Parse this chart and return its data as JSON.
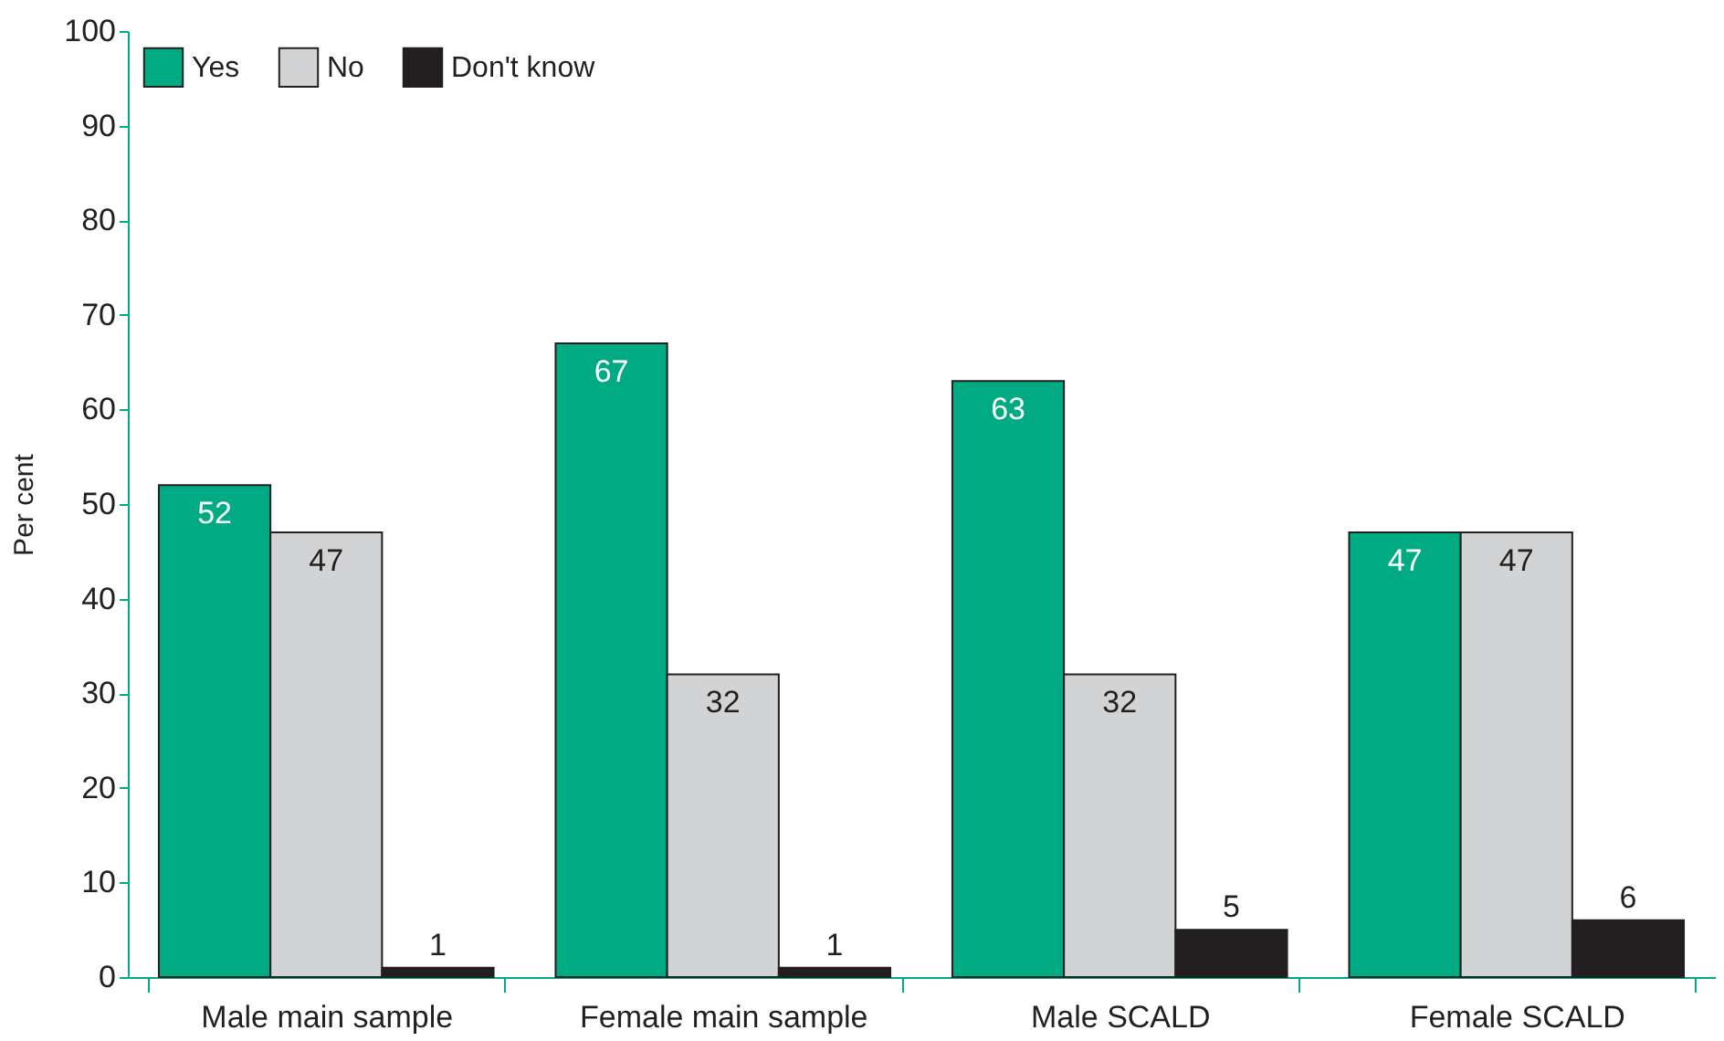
{
  "chart_data": {
    "type": "bar",
    "ylabel": "Per cent",
    "categories": [
      "Male main sample",
      "Female main sample",
      "Male SCALD",
      "Female SCALD"
    ],
    "series": [
      {
        "name": "Yes",
        "color": "#00ab84",
        "values": [
          52,
          67,
          63,
          47
        ]
      },
      {
        "name": "No",
        "color": "#d1d3d4",
        "values": [
          47,
          32,
          32,
          47
        ]
      },
      {
        "name": "Don't know",
        "color": "#231f20",
        "values": [
          1,
          1,
          5,
          6
        ]
      }
    ],
    "ylim": [
      0,
      100
    ],
    "yticks": [
      0,
      10,
      20,
      30,
      40,
      50,
      60,
      70,
      80,
      90,
      100
    ],
    "data_labels": true,
    "grid": false,
    "legend": "top left"
  }
}
